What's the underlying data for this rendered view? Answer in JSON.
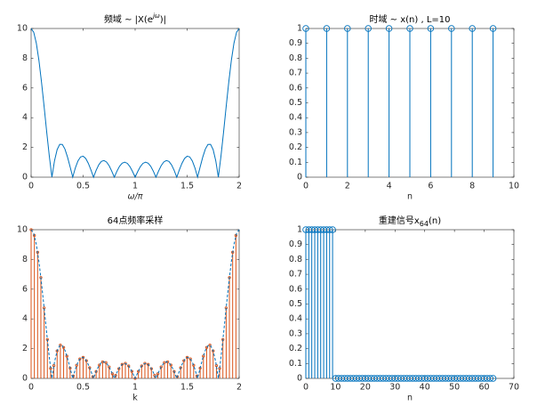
{
  "chart_data": [
    {
      "type": "line",
      "title": "频域 ~ |X(e",
      "title_superscript": "jω",
      "title_end": ")|",
      "xlabel": "ω/π",
      "x": [
        0,
        0.025,
        0.05,
        0.075,
        0.1,
        0.125,
        0.15,
        0.175,
        0.2,
        0.225,
        0.25,
        0.275,
        0.3,
        0.325,
        0.35,
        0.375,
        0.4,
        0.425,
        0.45,
        0.475,
        0.5,
        0.525,
        0.55,
        0.575,
        0.6,
        0.625,
        0.65,
        0.675,
        0.7,
        0.725,
        0.75,
        0.775,
        0.8,
        0.825,
        0.85,
        0.875,
        0.9,
        0.925,
        0.95,
        0.975,
        1,
        1.025,
        1.05,
        1.075,
        1.1,
        1.125,
        1.15,
        1.175,
        1.2,
        1.225,
        1.25,
        1.275,
        1.3,
        1.325,
        1.35,
        1.375,
        1.4,
        1.425,
        1.45,
        1.475,
        1.5,
        1.525,
        1.55,
        1.575,
        1.6,
        1.625,
        1.65,
        1.675,
        1.7,
        1.725,
        1.75,
        1.775,
        1.8,
        1.825,
        1.85,
        1.875,
        1.9,
        1.925,
        1.95,
        1.975,
        2
      ],
      "values": [
        10,
        9.75,
        9.01,
        7.86,
        6.39,
        4.74,
        3.03,
        1.41,
        0,
        1.11,
        1.85,
        2.21,
        2.2,
        1.89,
        1.35,
        0.69,
        0,
        0.62,
        1.09,
        1.36,
        1.41,
        1.26,
        0.93,
        0.49,
        0,
        0.46,
        0.83,
        1.06,
        1.12,
        1.02,
        0.77,
        0.41,
        0,
        0.4,
        0.73,
        0.94,
        1.01,
        0.93,
        0.71,
        0.38,
        0,
        0.38,
        0.71,
        0.93,
        1.01,
        0.94,
        0.73,
        0.4,
        0,
        0.41,
        0.77,
        1.02,
        1.12,
        1.06,
        0.83,
        0.46,
        0,
        0.49,
        0.93,
        1.26,
        1.41,
        1.36,
        1.09,
        0.62,
        0,
        0.69,
        1.35,
        1.89,
        2.2,
        2.21,
        1.85,
        1.11,
        0,
        1.41,
        3.03,
        4.74,
        6.39,
        7.86,
        9.01,
        9.75,
        10
      ],
      "color": "#0072bd",
      "xlim": [
        0,
        2
      ],
      "ylim": [
        0,
        10
      ],
      "xticks": [
        0,
        0.5,
        1,
        1.5,
        2
      ],
      "yticks": [
        0,
        2,
        4,
        6,
        8,
        10
      ]
    },
    {
      "type": "stem",
      "title": "时域 ~ x(n) , L=10",
      "xlabel": "n",
      "x": [
        0,
        1,
        2,
        3,
        4,
        5,
        6,
        7,
        8,
        9
      ],
      "values": [
        1,
        1,
        1,
        1,
        1,
        1,
        1,
        1,
        1,
        1
      ],
      "color": "#0072bd",
      "xlim": [
        0,
        10
      ],
      "ylim": [
        0,
        1
      ],
      "xticks": [
        0,
        2,
        4,
        6,
        8,
        10
      ],
      "yticks": [
        0,
        0.1,
        0.2,
        0.3,
        0.4,
        0.5,
        0.6,
        0.7,
        0.8,
        0.9,
        1
      ]
    },
    {
      "type": "stem",
      "title": "64点频率采样",
      "xlabel": "k",
      "x": [
        0,
        0.03125,
        0.0625,
        0.09375,
        0.125,
        0.15625,
        0.1875,
        0.21875,
        0.25,
        0.28125,
        0.3125,
        0.34375,
        0.375,
        0.40625,
        0.4375,
        0.46875,
        0.5,
        0.53125,
        0.5625,
        0.59375,
        0.625,
        0.65625,
        0.6875,
        0.71875,
        0.75,
        0.78125,
        0.8125,
        0.84375,
        0.875,
        0.90625,
        0.9375,
        0.96875,
        1,
        1.03125,
        1.0625,
        1.09375,
        1.125,
        1.15625,
        1.1875,
        1.21875,
        1.25,
        1.28125,
        1.3125,
        1.34375,
        1.375,
        1.40625,
        1.4375,
        1.46875,
        1.5,
        1.53125,
        1.5625,
        1.59375,
        1.625,
        1.65625,
        1.6875,
        1.71875,
        1.75,
        1.78125,
        1.8125,
        1.84375,
        1.875,
        1.90625,
        1.9375,
        1.96875
      ],
      "values": [
        10,
        9.61,
        8.48,
        6.78,
        4.74,
        2.61,
        0.67,
        0.86,
        1.85,
        2.24,
        2.08,
        1.5,
        0.69,
        0.16,
        0.88,
        1.31,
        1.41,
        1.19,
        0.72,
        0.12,
        0.46,
        0.9,
        1.11,
        1.06,
        0.77,
        0.31,
        0.2,
        0.65,
        0.94,
        1.01,
        0.84,
        0.47,
        0,
        0.47,
        0.84,
        1.01,
        0.94,
        0.65,
        0.2,
        0.31,
        0.77,
        1.06,
        1.11,
        0.9,
        0.46,
        0.12,
        0.72,
        1.19,
        1.41,
        1.31,
        0.88,
        0.16,
        0.69,
        1.5,
        2.08,
        2.24,
        1.85,
        0.86,
        0.67,
        2.61,
        4.74,
        6.78,
        8.48,
        9.61
      ],
      "color": "#d95319",
      "marker_size": 1.2,
      "overlay": {
        "type": "line",
        "dashed": true,
        "color": "#0072bd",
        "x": [
          0,
          0.025,
          0.05,
          0.075,
          0.1,
          0.125,
          0.15,
          0.175,
          0.2,
          0.225,
          0.25,
          0.275,
          0.3,
          0.325,
          0.35,
          0.375,
          0.4,
          0.425,
          0.45,
          0.475,
          0.5,
          0.525,
          0.55,
          0.575,
          0.6,
          0.625,
          0.65,
          0.675,
          0.7,
          0.725,
          0.75,
          0.775,
          0.8,
          0.825,
          0.85,
          0.875,
          0.9,
          0.925,
          0.95,
          0.975,
          1,
          1.025,
          1.05,
          1.075,
          1.1,
          1.125,
          1.15,
          1.175,
          1.2,
          1.225,
          1.25,
          1.275,
          1.3,
          1.325,
          1.35,
          1.375,
          1.4,
          1.425,
          1.45,
          1.475,
          1.5,
          1.525,
          1.55,
          1.575,
          1.6,
          1.625,
          1.65,
          1.675,
          1.7,
          1.725,
          1.75,
          1.775,
          1.8,
          1.825,
          1.85,
          1.875,
          1.9,
          1.925,
          1.95,
          1.975,
          2
        ],
        "values": [
          10,
          9.75,
          9.01,
          7.86,
          6.39,
          4.74,
          3.03,
          1.41,
          0,
          1.11,
          1.85,
          2.21,
          2.2,
          1.89,
          1.35,
          0.69,
          0,
          0.62,
          1.09,
          1.36,
          1.41,
          1.26,
          0.93,
          0.49,
          0,
          0.46,
          0.83,
          1.06,
          1.12,
          1.02,
          0.77,
          0.41,
          0,
          0.4,
          0.73,
          0.94,
          1.01,
          0.93,
          0.71,
          0.38,
          0,
          0.38,
          0.71,
          0.93,
          1.01,
          0.94,
          0.73,
          0.4,
          0,
          0.41,
          0.77,
          1.02,
          1.12,
          1.06,
          0.83,
          0.46,
          0,
          0.49,
          0.93,
          1.26,
          1.41,
          1.36,
          1.09,
          0.62,
          0,
          0.69,
          1.35,
          1.89,
          2.2,
          2.21,
          1.85,
          1.11,
          0,
          1.41,
          3.03,
          4.74,
          6.39,
          7.86,
          9.01,
          9.75,
          10
        ]
      },
      "xlim": [
        0,
        2
      ],
      "ylim": [
        0,
        10
      ],
      "xticks": [
        0,
        0.5,
        1,
        1.5,
        2
      ],
      "yticks": [
        0,
        2,
        4,
        6,
        8,
        10
      ]
    },
    {
      "type": "stem",
      "title": "重建信号x",
      "title_subscript": "64",
      "title_end": "(n)",
      "xlabel": "n",
      "x": [
        0,
        1,
        2,
        3,
        4,
        5,
        6,
        7,
        8,
        9,
        10,
        11,
        12,
        13,
        14,
        15,
        16,
        17,
        18,
        19,
        20,
        21,
        22,
        23,
        24,
        25,
        26,
        27,
        28,
        29,
        30,
        31,
        32,
        33,
        34,
        35,
        36,
        37,
        38,
        39,
        40,
        41,
        42,
        43,
        44,
        45,
        46,
        47,
        48,
        49,
        50,
        51,
        52,
        53,
        54,
        55,
        56,
        57,
        58,
        59,
        60,
        61,
        62,
        63
      ],
      "values": [
        1,
        1,
        1,
        1,
        1,
        1,
        1,
        1,
        1,
        1,
        0,
        0,
        0,
        0,
        0,
        0,
        0,
        0,
        0,
        0,
        0,
        0,
        0,
        0,
        0,
        0,
        0,
        0,
        0,
        0,
        0,
        0,
        0,
        0,
        0,
        0,
        0,
        0,
        0,
        0,
        0,
        0,
        0,
        0,
        0,
        0,
        0,
        0,
        0,
        0,
        0,
        0,
        0,
        0,
        0,
        0,
        0,
        0,
        0,
        0,
        0,
        0,
        0,
        0
      ],
      "color": "#0072bd",
      "xlim": [
        0,
        70
      ],
      "ylim": [
        0,
        1
      ],
      "xticks": [
        0,
        10,
        20,
        30,
        40,
        50,
        60,
        70
      ],
      "yticks": [
        0,
        0.1,
        0.2,
        0.3,
        0.4,
        0.5,
        0.6,
        0.7,
        0.8,
        0.9,
        1
      ]
    }
  ]
}
